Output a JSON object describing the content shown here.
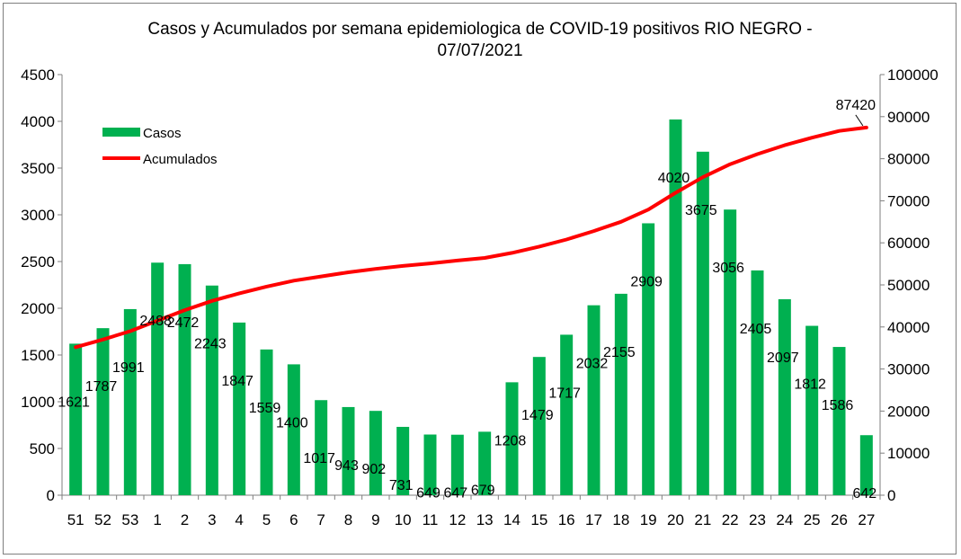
{
  "chart_data": {
    "type": "bar+line",
    "title_line1": "Casos y Acumulados por semana epidemiologica de COVID-19 positivos RIO NEGRO -",
    "title_line2": "07/07/2021",
    "categories": [
      "51",
      "52",
      "53",
      "1",
      "2",
      "3",
      "4",
      "5",
      "6",
      "7",
      "8",
      "9",
      "10",
      "11",
      "12",
      "13",
      "14",
      "15",
      "16",
      "17",
      "18",
      "19",
      "20",
      "21",
      "22",
      "23",
      "24",
      "25",
      "26",
      "27"
    ],
    "series": [
      {
        "name": "Casos",
        "type": "bar",
        "axis": "left",
        "color": "#00b050",
        "values": [
          1621,
          1787,
          1991,
          2488,
          2472,
          2243,
          1847,
          1559,
          1400,
          1017,
          943,
          902,
          731,
          649,
          647,
          679,
          1208,
          1479,
          1717,
          2032,
          2155,
          2909,
          4020,
          3675,
          3056,
          2405,
          2097,
          1812,
          1586,
          642
        ],
        "labels": [
          "1621",
          "1787",
          "1991",
          "2488",
          "2472",
          "2243",
          "1847",
          "1559",
          "1400",
          "1017",
          "943",
          "902",
          "731",
          "649",
          "647",
          "679",
          "1208",
          "1479",
          "1717",
          "2032",
          "2155",
          "2909",
          "4020",
          "3675",
          "3056",
          "2405",
          "2097",
          "1812",
          "1586",
          "642"
        ]
      },
      {
        "name": "Acumulados",
        "type": "line",
        "axis": "right",
        "color": "#ff0000",
        "values": [
          35200,
          37000,
          39000,
          41500,
          44000,
          46200,
          48000,
          49600,
          51000,
          52000,
          53000,
          53800,
          54500,
          55100,
          55800,
          56400,
          57600,
          59100,
          60800,
          62800,
          65000,
          67900,
          71900,
          75600,
          78700,
          81100,
          83200,
          85000,
          86600,
          87420
        ],
        "end_label": "87420"
      }
    ],
    "y_left": {
      "min": 0,
      "max": 4500,
      "ticks": [
        "0",
        "500",
        "1000",
        "1500",
        "2000",
        "2500",
        "3000",
        "3500",
        "4000",
        "4500"
      ]
    },
    "y_right": {
      "min": 0,
      "max": 100000,
      "ticks": [
        "0",
        "10000",
        "20000",
        "30000",
        "40000",
        "50000",
        "60000",
        "70000",
        "80000",
        "90000",
        "100000"
      ]
    },
    "legend": {
      "position": "top-left",
      "items": [
        "Casos",
        "Acumulados"
      ]
    }
  }
}
